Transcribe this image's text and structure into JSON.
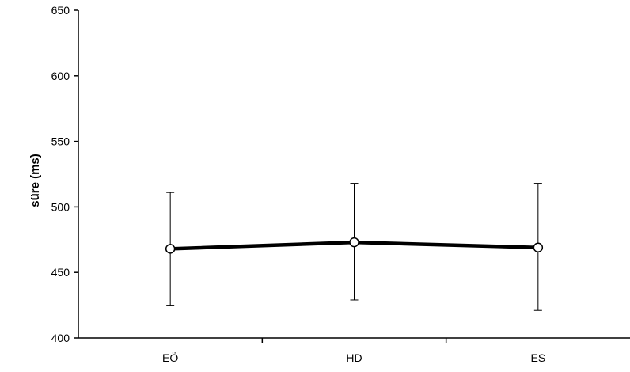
{
  "chart_data": {
    "type": "line",
    "categories": [
      "EÖ",
      "HD",
      "ES"
    ],
    "series": [
      {
        "values": [
          468,
          473,
          469
        ],
        "error_low": [
          425,
          429,
          421
        ],
        "error_high": [
          511,
          518,
          518
        ]
      }
    ],
    "ylabel": "süre (ms)",
    "xlabel": "",
    "ylim": [
      400,
      650
    ],
    "yticks": [
      400,
      450,
      500,
      550,
      600,
      650
    ],
    "grid": false,
    "legend": "none",
    "marker": "open-circle",
    "line_color": "#000000"
  }
}
